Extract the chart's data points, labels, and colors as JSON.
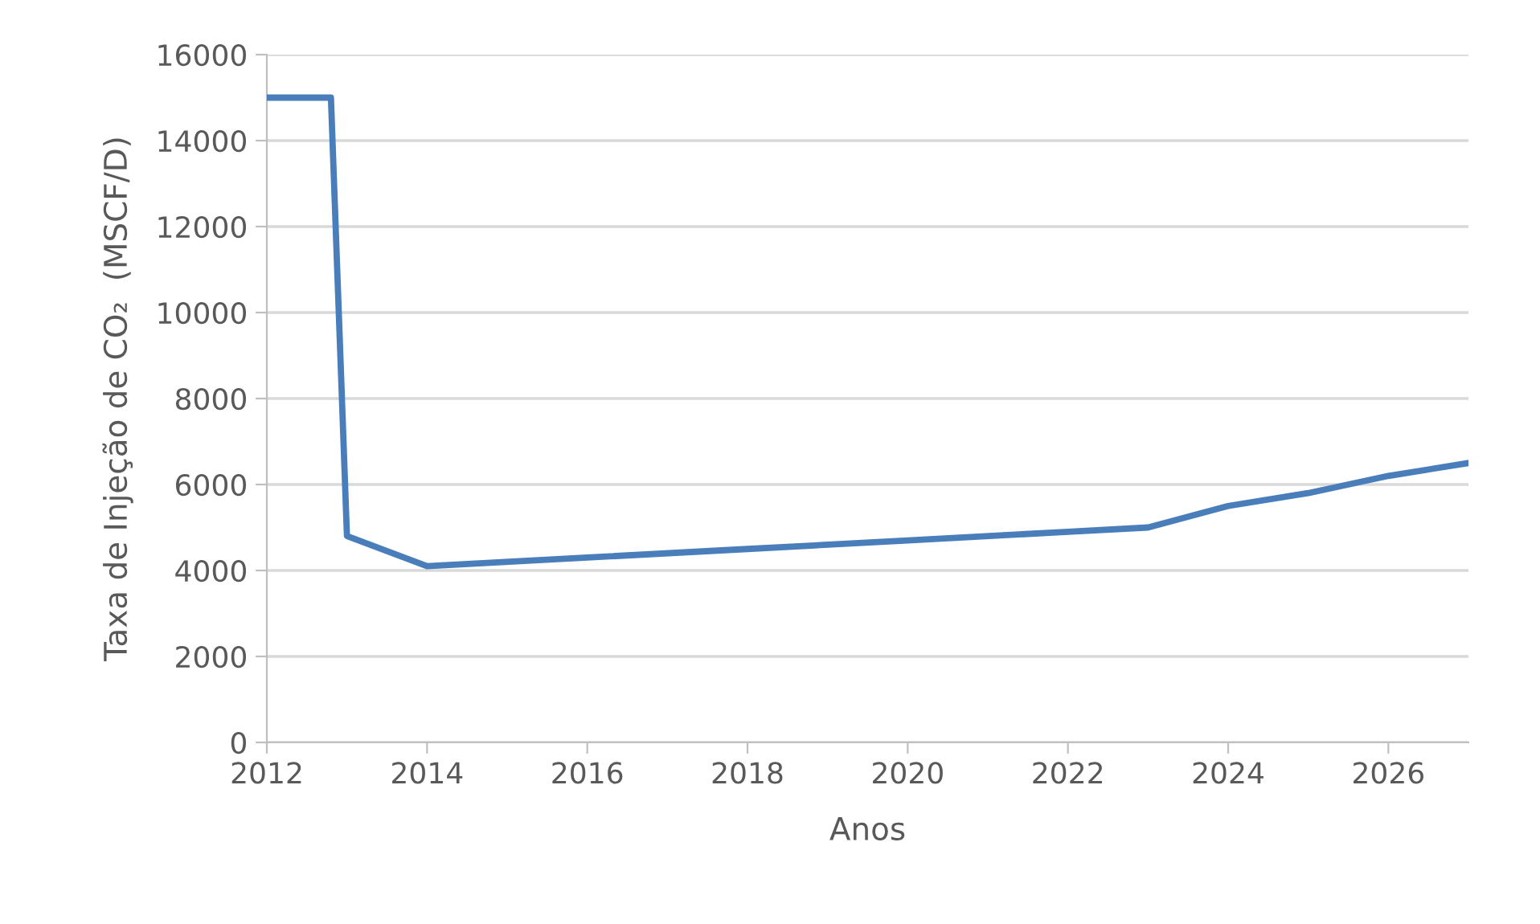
{
  "chart_data": {
    "type": "line",
    "xlabel": "Anos",
    "ylabel": "Taxa de Injeção de CO₂  (MSCF/D)",
    "x": [
      2012,
      2012.8,
      2013,
      2014,
      2016,
      2018,
      2020,
      2022,
      2023,
      2024,
      2025,
      2026,
      2027
    ],
    "series": [
      {
        "color": "#4a7ebb",
        "values": [
          15000,
          15000,
          4800,
          4100,
          4300,
          4500,
          4700,
          4900,
          5000,
          5500,
          5800,
          6200,
          6500
        ]
      }
    ],
    "xlim": [
      2012,
      2027
    ],
    "xticks": [
      2012,
      2014,
      2016,
      2018,
      2020,
      2022,
      2024,
      2026
    ],
    "ylim": [
      0,
      16000
    ],
    "yticks": [
      0,
      2000,
      4000,
      6000,
      8000,
      10000,
      12000,
      14000,
      16000
    ],
    "grid": "y",
    "marker": "none",
    "line_style": "solid"
  }
}
